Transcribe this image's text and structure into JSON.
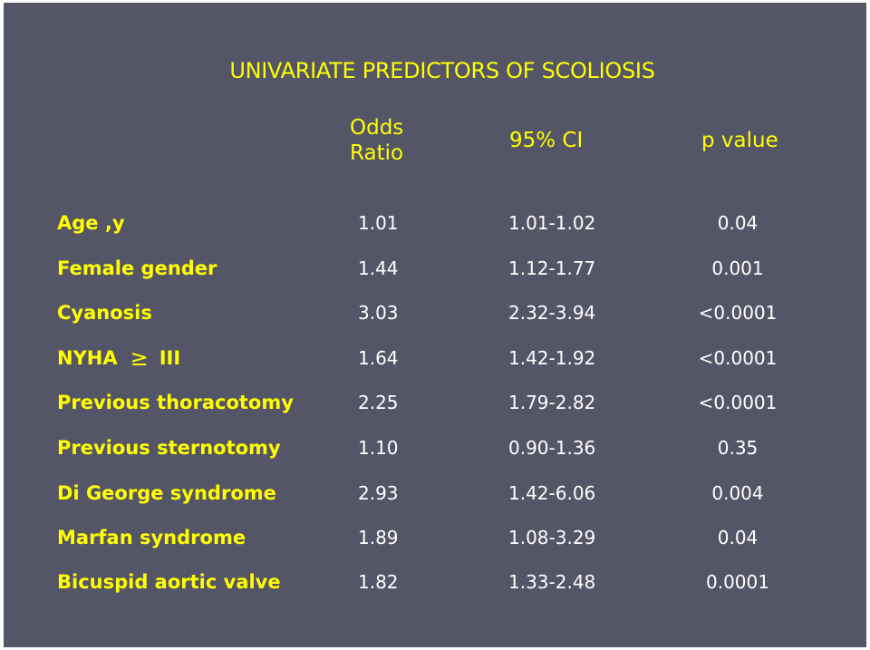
{
  "title": "UNIVARIATE PREDICTORS OF SCOLIOSIS",
  "columns": {
    "odds_ratio": "Odds\nRatio",
    "ci": "95% CI",
    "p_value": "p value"
  },
  "rows": [
    {
      "label": "Age ,y",
      "or": "1.01",
      "ci": "1.01-1.02",
      "p": "0.04"
    },
    {
      "label": "Female gender",
      "or": "1.44",
      "ci": "1.12-1.77",
      "p": "0.001"
    },
    {
      "label": "Cyanosis",
      "or": "3.03",
      "ci": "2.32-3.94",
      "p": "<0.0001"
    },
    {
      "label_pre": "NYHA",
      "label_symbol": "≥",
      "label_post": "III",
      "or": "1.64",
      "ci": "1.42-1.92",
      "p": "<0.0001"
    },
    {
      "label": "Previous thoracotomy",
      "or": "2.25",
      "ci": "1.79-2.82",
      "p": "<0.0001"
    },
    {
      "label": "Previous sternotomy",
      "or": "1.10",
      "ci": "0.90-1.36",
      "p": "0.35"
    },
    {
      "label": "Di George syndrome",
      "or": "2.93",
      "ci": "1.42-6.06",
      "p": "0.004"
    },
    {
      "label": "Marfan syndrome",
      "or": "1.89",
      "ci": "1.08-3.29",
      "p": "0.04"
    },
    {
      "label": "Bicuspid aortic valve",
      "or": "1.82",
      "ci": "1.33-2.48",
      "p": "0.0001"
    }
  ],
  "colors": {
    "background": "#545566",
    "accent_text": "#ffff00",
    "value_text": "#ffffff"
  }
}
